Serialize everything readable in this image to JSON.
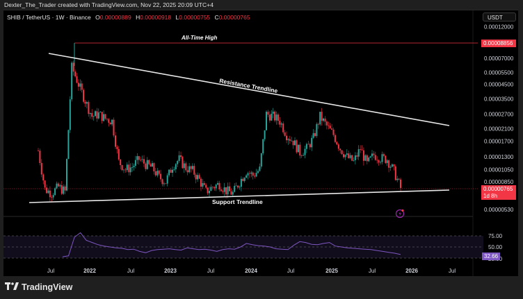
{
  "header": {
    "credit": "Dexter_The_Trader created with TradingView.com, Nov 22, 2025 20:09 UTC+4"
  },
  "legend": {
    "symbol": "SHIB / TetherUS · 1W · Binance",
    "open_label": "O",
    "open": "0.00000889",
    "high_label": "H",
    "high": "0.00000918",
    "low_label": "L",
    "low": "0.00000755",
    "close_label": "C",
    "close": "0.00000765"
  },
  "currency_button": "USDT",
  "price_tags": {
    "ath": "0.00008856",
    "last": "0.00000765",
    "countdown": "1d 8h",
    "rsi": "32.66"
  },
  "annotations": {
    "ath": "All-Time High",
    "resistance": "Resistance Trendline",
    "support": "Support Trendline"
  },
  "footer": {
    "brand": "TradingView"
  },
  "colors": {
    "up": "#26a69a",
    "down": "#f23645",
    "rsi_line": "#7e57c2",
    "background": "#000000",
    "frame": "#1f1f1f"
  },
  "chart_data": {
    "type": "candlestick",
    "title": "SHIB / TetherUS · 1W · Binance",
    "scale": "log",
    "y_axis_ticks": [
      "0.00012000",
      "0.00007000",
      "0.00005500",
      "0.00004500",
      "0.00003500",
      "0.00002700",
      "0.00002100",
      "0.00001700",
      "0.00001300",
      "0.00001050",
      "0.00000850",
      "0.00000650",
      "0.00000530"
    ],
    "x_axis_ticks": [
      "Jul",
      "2022",
      "Jul",
      "2023",
      "Jul",
      "2024",
      "Jul",
      "2025",
      "Jul",
      "2026",
      "Jul"
    ],
    "ohlc_last": {
      "open": 8.89e-06,
      "high": 9.18e-06,
      "low": 7.55e-06,
      "close": 7.65e-06
    },
    "all_time_high": 8.856e-05,
    "approx_close_series": [
      {
        "t": "2021-05",
        "v": 1.45e-05
      },
      {
        "t": "2021-06",
        "v": 7.5e-06
      },
      {
        "t": "2021-07",
        "v": 7e-06
      },
      {
        "t": "2021-08",
        "v": 7.8e-06
      },
      {
        "t": "2021-09",
        "v": 7.2e-06
      },
      {
        "t": "2021-10",
        "v": 6e-05
      },
      {
        "t": "2021-11",
        "v": 4.5e-05
      },
      {
        "t": "2021-12",
        "v": 3.4e-05
      },
      {
        "t": "2022-01",
        "v": 2.6e-05
      },
      {
        "t": "2022-02",
        "v": 2.7e-05
      },
      {
        "t": "2022-03",
        "v": 2.5e-05
      },
      {
        "t": "2022-04",
        "v": 2.4e-05
      },
      {
        "t": "2022-05",
        "v": 1.2e-05
      },
      {
        "t": "2022-06",
        "v": 1.05e-05
      },
      {
        "t": "2022-07",
        "v": 1.1e-05
      },
      {
        "t": "2022-08",
        "v": 1.25e-05
      },
      {
        "t": "2022-09",
        "v": 1.15e-05
      },
      {
        "t": "2022-10",
        "v": 1.08e-05
      },
      {
        "t": "2022-11",
        "v": 9.2e-06
      },
      {
        "t": "2022-12",
        "v": 8.5e-06
      },
      {
        "t": "2023-01",
        "v": 1.12e-05
      },
      {
        "t": "2023-02",
        "v": 1.25e-05
      },
      {
        "t": "2023-03",
        "v": 1.08e-05
      },
      {
        "t": "2023-04",
        "v": 1.03e-05
      },
      {
        "t": "2023-05",
        "v": 8.8e-06
      },
      {
        "t": "2023-06",
        "v": 7.2e-06
      },
      {
        "t": "2023-07",
        "v": 7.8e-06
      },
      {
        "t": "2023-08",
        "v": 8.2e-06
      },
      {
        "t": "2023-09",
        "v": 7.3e-06
      },
      {
        "t": "2023-10",
        "v": 7e-06
      },
      {
        "t": "2023-11",
        "v": 8.5e-06
      },
      {
        "t": "2023-12",
        "v": 1.02e-05
      },
      {
        "t": "2024-01",
        "v": 9.5e-06
      },
      {
        "t": "2024-02",
        "v": 1.05e-05
      },
      {
        "t": "2024-03",
        "v": 2.7e-05
      },
      {
        "t": "2024-04",
        "v": 2.6e-05
      },
      {
        "t": "2024-05",
        "v": 2.4e-05
      },
      {
        "t": "2024-06",
        "v": 1.9e-05
      },
      {
        "t": "2024-07",
        "v": 1.7e-05
      },
      {
        "t": "2024-08",
        "v": 1.4e-05
      },
      {
        "t": "2024-09",
        "v": 1.5e-05
      },
      {
        "t": "2024-10",
        "v": 1.8e-05
      },
      {
        "t": "2024-11",
        "v": 2.6e-05
      },
      {
        "t": "2024-12",
        "v": 2.2e-05
      },
      {
        "t": "2025-01",
        "v": 1.9e-05
      },
      {
        "t": "2025-02",
        "v": 1.5e-05
      },
      {
        "t": "2025-03",
        "v": 1.3e-05
      },
      {
        "t": "2025-04",
        "v": 1.2e-05
      },
      {
        "t": "2025-05",
        "v": 1.5e-05
      },
      {
        "t": "2025-06",
        "v": 1.15e-05
      },
      {
        "t": "2025-07",
        "v": 1.35e-05
      },
      {
        "t": "2025-08",
        "v": 1.28e-05
      },
      {
        "t": "2025-09",
        "v": 1.25e-05
      },
      {
        "t": "2025-10",
        "v": 1.02e-05
      },
      {
        "t": "2025-11",
        "v": 7.65e-06
      }
    ],
    "trendlines": [
      {
        "name": "Resistance Trendline",
        "from": {
          "t": "2021-04",
          "v": 7.8e-05
        },
        "to": {
          "t": "2026-07",
          "v": 2.2e-05
        }
      },
      {
        "name": "Support Trendline",
        "from": {
          "t": "2021-03",
          "v": 6e-06
        },
        "to": {
          "t": "2026-07",
          "v": 7.5e-06
        }
      },
      {
        "name": "All-Time High",
        "level": 8.856e-05
      }
    ],
    "indicator": {
      "name": "RSI",
      "levels": [
        75,
        50,
        25
      ],
      "last": 32.66,
      "approx_values": [
        28,
        30,
        72,
        82,
        65,
        60,
        55,
        52,
        50,
        48,
        47,
        44,
        45,
        40,
        37,
        42,
        44,
        45,
        46,
        44,
        43,
        48,
        46,
        44,
        45,
        43,
        40,
        44,
        46,
        45,
        50,
        58,
        55,
        53,
        52,
        50,
        46,
        45,
        44,
        54,
        62,
        60,
        56,
        55,
        58,
        60,
        52,
        50,
        48,
        47,
        46,
        45,
        44,
        42,
        40,
        38,
        36,
        33
      ]
    },
    "xlabel": "",
    "ylabel": "USDT"
  }
}
